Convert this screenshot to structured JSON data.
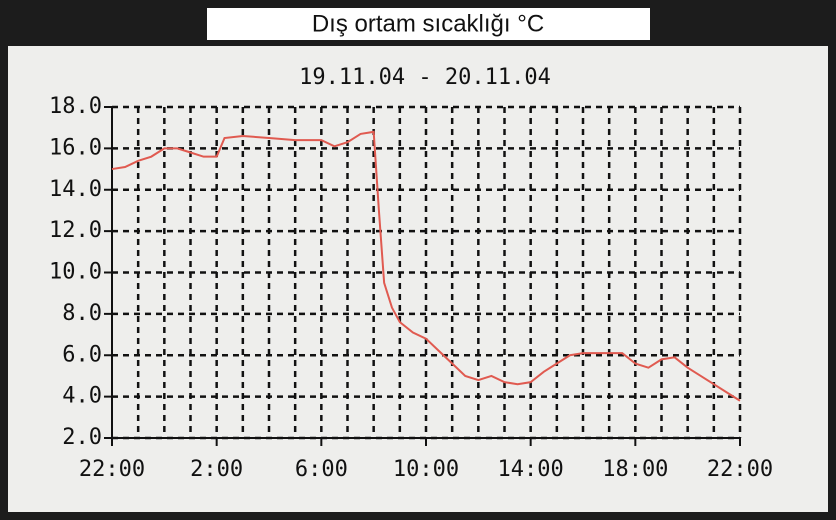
{
  "chart_data": {
    "type": "line",
    "title": "Dış ortam sıcaklığı °C",
    "subtitle": "19.11.04 - 20.11.04",
    "x": [
      0,
      0.5,
      1,
      1.5,
      2,
      2.5,
      3,
      3.5,
      4,
      4.3,
      5,
      6,
      7,
      8,
      8.5,
      9,
      9.5,
      10,
      10.2,
      10.4,
      10.7,
      11,
      11.5,
      12,
      12.5,
      13,
      13.5,
      14,
      14.5,
      15,
      15.5,
      16,
      16.5,
      17,
      17.5,
      18,
      19,
      19.5,
      20,
      20.5,
      21,
      21.5,
      22,
      22.5,
      23,
      23.5,
      24
    ],
    "series": [
      {
        "color": "#e05a50",
        "values": [
          15.0,
          15.1,
          15.4,
          15.6,
          16.0,
          16.0,
          15.8,
          15.6,
          15.6,
          16.5,
          16.6,
          16.5,
          16.4,
          16.4,
          16.1,
          16.3,
          16.7,
          16.8,
          13.0,
          9.5,
          8.3,
          7.6,
          7.1,
          6.8,
          6.2,
          5.6,
          5.0,
          4.8,
          5.0,
          4.7,
          4.6,
          4.7,
          5.2,
          5.6,
          6.0,
          6.1,
          6.1,
          6.1,
          5.6,
          5.4,
          5.8,
          5.9,
          5.4,
          5.0,
          4.6,
          4.2,
          3.8
        ]
      }
    ],
    "xlim": [
      0,
      24
    ],
    "xticks": [
      {
        "value": 0,
        "label": "22:00"
      },
      {
        "value": 4,
        "label": "2:00"
      },
      {
        "value": 8,
        "label": "6:00"
      },
      {
        "value": 12,
        "label": "10:00"
      },
      {
        "value": 16,
        "label": "14:00"
      },
      {
        "value": 20,
        "label": "18:00"
      },
      {
        "value": 24,
        "label": "22:00"
      }
    ],
    "x_minor_ticks": [
      1,
      2,
      3,
      4,
      5,
      6,
      7,
      8,
      9,
      10,
      11,
      12,
      13,
      14,
      15,
      16,
      17,
      18,
      19,
      20,
      21,
      22,
      23,
      24
    ],
    "ylim": [
      2,
      18
    ],
    "yticks": [
      {
        "value": 2,
        "label": "2.0"
      },
      {
        "value": 4,
        "label": "4.0"
      },
      {
        "value": 6,
        "label": "6.0"
      },
      {
        "value": 8,
        "label": "8.0"
      },
      {
        "value": 10,
        "label": "10.0"
      },
      {
        "value": 12,
        "label": "12.0"
      },
      {
        "value": 14,
        "label": "14.0"
      },
      {
        "value": 16,
        "label": "16.0"
      },
      {
        "value": 18,
        "label": "18.0"
      }
    ],
    "grid": true
  }
}
